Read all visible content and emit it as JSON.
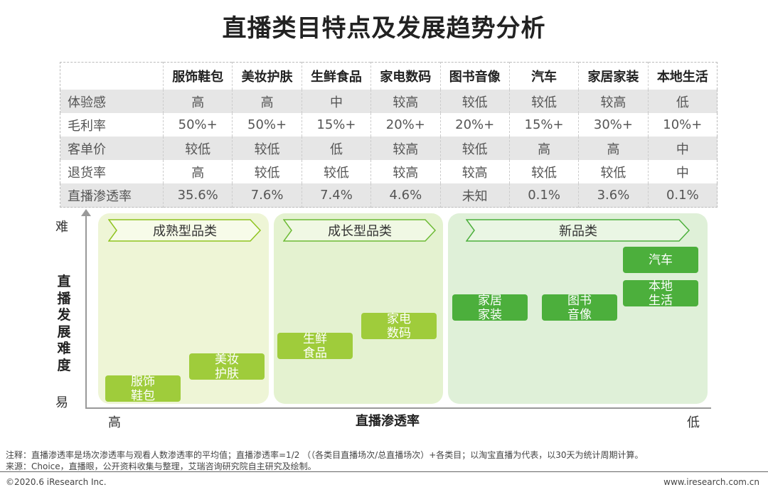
{
  "title": "直播类目特点及发展趋势分析",
  "table": {
    "headers": [
      "",
      "服饰鞋包",
      "美妆护肤",
      "生鲜食品",
      "家电数码",
      "图书音像",
      "汽车",
      "家居家装",
      "本地生活"
    ],
    "rows": [
      [
        "体验感",
        "高",
        "高",
        "中",
        "较高",
        "较低",
        "较低",
        "较高",
        "低"
      ],
      [
        "毛利率",
        "50%+",
        "50%+",
        "15%+",
        "20%+",
        "20%+",
        "15%+",
        "30%+",
        "10%+"
      ],
      [
        "客单价",
        "较低",
        "较低",
        "低",
        "较高",
        "较低",
        "高",
        "高",
        "中"
      ],
      [
        "退货率",
        "高",
        "较低",
        "较低",
        "较高",
        "较高",
        "较低",
        "较低",
        "中"
      ],
      [
        "直播渗透率",
        "35.6%",
        "7.6%",
        "7.4%",
        "4.6%",
        "未知",
        "0.1%",
        "3.6%",
        "0.1%"
      ]
    ]
  },
  "groups": {
    "mature": "成熟型品类",
    "growth": "成长型品类",
    "new": "新品类"
  },
  "boxes": {
    "fashion": "服饰\n鞋包",
    "beauty": "美妆\n护肤",
    "fresh": "生鲜\n食品",
    "appliance": "家电\n数码",
    "home": "家居\n家装",
    "books": "图书\n音像",
    "car": "汽车",
    "local": "本地\n生活"
  },
  "axes": {
    "y_title": "直播发展难度",
    "y_top": "难",
    "y_bottom": "易",
    "x_title": "直播渗透率",
    "x_left": "高",
    "x_right": "低"
  },
  "notes": {
    "note": "注释：直播渗透率是场次渗透率与观看人数渗透率的平均值；直播渗透率=1/2 （（各类目直播场次/总直播场次）+各类目；以淘宝直播为代表，以30天为统计周期计算。",
    "source": "来源：Choice，直播眼，公开资料收集与整理，艾瑞咨询研究院自主研究及绘制。"
  },
  "footer": {
    "left": "©2020.6 iResearch Inc.",
    "right": "www.iresearch.com.cn"
  },
  "colors": {
    "mature_bg": "#eef5d6",
    "growth_bg": "#e4f2d0",
    "new_bg": "#dff0d8",
    "lime_box": "#9fcc3b",
    "green_box": "#4caf3c"
  }
}
